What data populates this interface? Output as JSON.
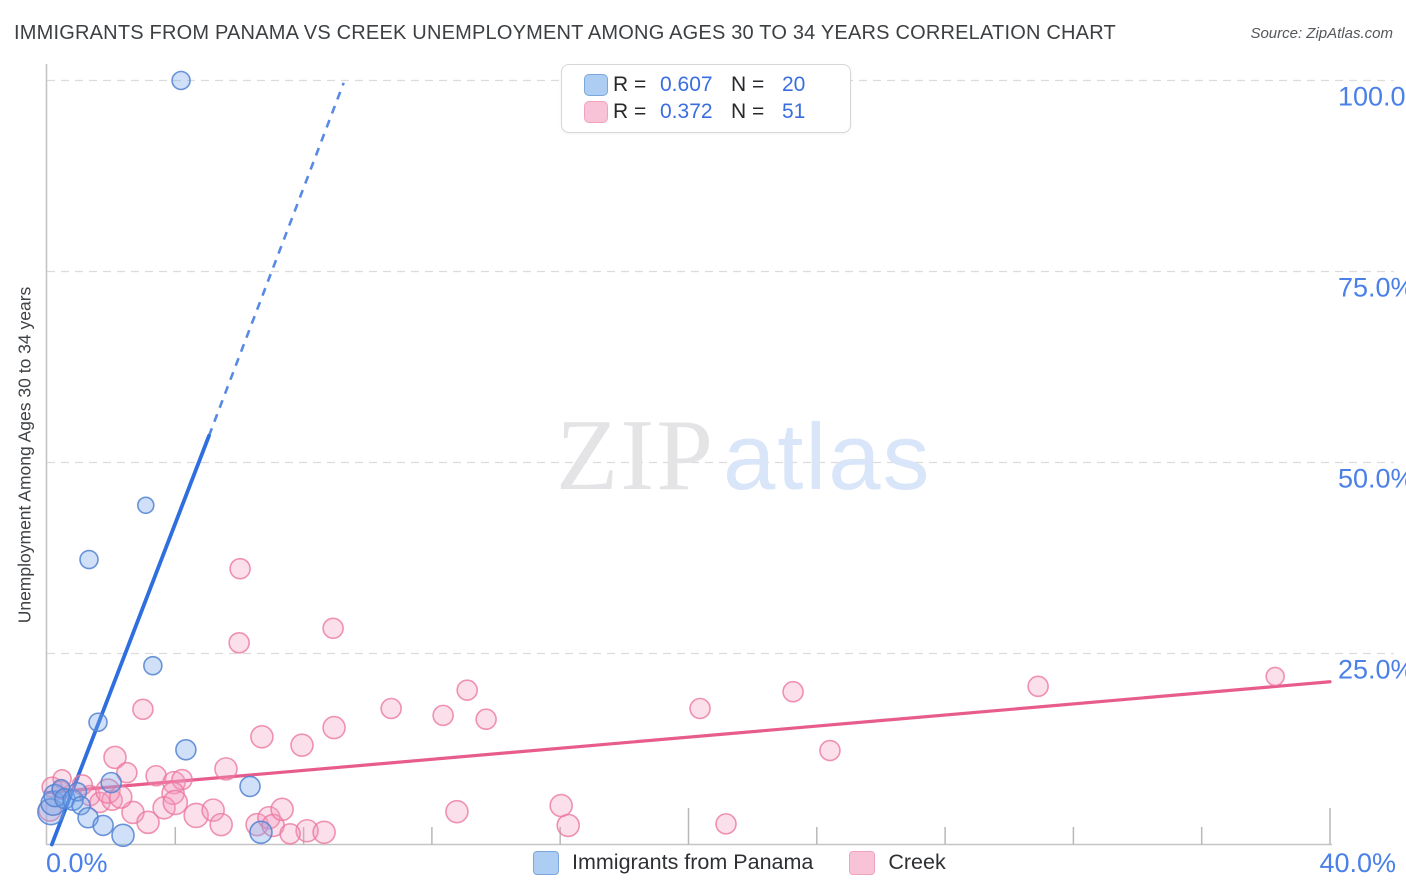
{
  "header": {
    "title": "IMMIGRANTS FROM PANAMA VS CREEK UNEMPLOYMENT AMONG AGES 30 TO 34 YEARS CORRELATION CHART",
    "source": "Source: ZipAtlas.com"
  },
  "legend_box": {
    "rows": [
      {
        "series": "panama",
        "r_label": "R =",
        "r_value": "0.607",
        "n_label": "N =",
        "n_value": "20"
      },
      {
        "series": "creek",
        "r_label": "R =",
        "r_value": "0.372",
        "n_label": "N =",
        "n_value": "51"
      }
    ]
  },
  "watermark": {
    "zip": "ZIP",
    "atlas": "atlas"
  },
  "axes": {
    "y_label": "Unemployment Among Ages 30 to 34 years",
    "x_min_label": "0.0%",
    "x_max_label": "40.0%",
    "y_tick_labels": [
      "100.0%",
      "75.0%",
      "50.0%",
      "25.0%"
    ]
  },
  "bottom_legend": {
    "panama_label": "Immigrants from Panama",
    "creek_label": "Creek"
  },
  "colors": {
    "panama_fill": "rgba(118,165,235,0.35)",
    "panama_stroke": "rgba(82,130,210,0.85)",
    "panama_swatch_fill": "#aecdf2",
    "panama_swatch_stroke": "#7ba7dd",
    "panama_line": "#2e6ede",
    "creek_fill": "rgba(244,156,190,0.32)",
    "creek_stroke": "rgba(236,120,160,0.8)",
    "creek_swatch_fill": "#f9c3d7",
    "creek_swatch_stroke": "#efa3bf",
    "creek_line": "#e75c8d",
    "axis_label_blue": "#4a80e8",
    "grid": "#dcdcdc",
    "axis": "#c4c4c4",
    "tick": "#b8b8b8",
    "watermark_zip": "#e4e4e7",
    "watermark_atlas": "#d9e5f8"
  },
  "chart_data": {
    "type": "scatter",
    "title": "Immigrants from Panama vs Creek Unemployment Among Ages 30 to 34 years",
    "xlabel": "Immigrants from Panama (%)",
    "ylabel": "Unemployment Among Ages 30 to 34 years (%)",
    "x_range": [
      0,
      40
    ],
    "y_range": [
      0,
      100
    ],
    "x_ticks_pct": [
      4,
      8,
      12,
      16,
      20,
      24,
      28,
      32,
      36,
      40
    ],
    "x_major_ticks_pct": [
      20,
      40
    ],
    "grid_y_pct": [
      25,
      50,
      75,
      100
    ],
    "grid_on": true,
    "legend_position": "bottom",
    "series": [
      {
        "name": "Immigrants from Panama",
        "R": 0.607,
        "N": 20,
        "points_xyr": [
          [
            4.18,
            100.0,
            9
          ],
          [
            3.08,
            44.4,
            8
          ],
          [
            1.31,
            37.3,
            9
          ],
          [
            3.3,
            23.4,
            9
          ],
          [
            1.59,
            16.0,
            9
          ],
          [
            4.33,
            12.4,
            10
          ],
          [
            6.33,
            7.6,
            10
          ],
          [
            2.0,
            8.1,
            10
          ],
          [
            0.12,
            4.3,
            13
          ],
          [
            0.19,
            5.4,
            12
          ],
          [
            0.25,
            6.4,
            11
          ],
          [
            0.44,
            7.3,
            9
          ],
          [
            0.56,
            6.0,
            10
          ],
          [
            0.81,
            5.8,
            10
          ],
          [
            0.95,
            6.9,
            9
          ],
          [
            1.06,
            5.1,
            9
          ],
          [
            1.28,
            3.5,
            10
          ],
          [
            1.75,
            2.5,
            10
          ],
          [
            2.37,
            1.2,
            11
          ],
          [
            6.67,
            1.6,
            11
          ]
        ]
      },
      {
        "name": "Creek",
        "R": 0.372,
        "N": 51,
        "points_xyr": [
          [
            6.02,
            36.1,
            10
          ],
          [
            5.99,
            26.4,
            10
          ],
          [
            8.92,
            28.3,
            10
          ],
          [
            2.99,
            17.7,
            10
          ],
          [
            6.7,
            14.1,
            11
          ],
          [
            7.95,
            13.0,
            11
          ],
          [
            8.95,
            15.3,
            11
          ],
          [
            2.12,
            11.4,
            11
          ],
          [
            10.73,
            17.8,
            10
          ],
          [
            12.35,
            16.9,
            10
          ],
          [
            13.1,
            20.2,
            10
          ],
          [
            13.69,
            16.4,
            10
          ],
          [
            12.78,
            4.3,
            11
          ],
          [
            16.03,
            5.1,
            11
          ],
          [
            16.25,
            2.5,
            11
          ],
          [
            8.11,
            1.8,
            11
          ],
          [
            8.64,
            1.6,
            11
          ],
          [
            20.36,
            17.8,
            10
          ],
          [
            23.26,
            20.0,
            10
          ],
          [
            24.41,
            12.3,
            10
          ],
          [
            30.9,
            20.7,
            10
          ],
          [
            21.17,
            2.7,
            10
          ],
          [
            38.29,
            22.0,
            9
          ],
          [
            2.49,
            9.4,
            10
          ],
          [
            3.4,
            9.0,
            10
          ],
          [
            3.96,
            8.1,
            11
          ],
          [
            4.21,
            8.5,
            10
          ],
          [
            3.93,
            6.7,
            11
          ],
          [
            2.68,
            4.2,
            11
          ],
          [
            3.15,
            2.9,
            11
          ],
          [
            3.65,
            4.8,
            11
          ],
          [
            4.65,
            3.8,
            12
          ],
          [
            5.18,
            4.5,
            11
          ],
          [
            5.43,
            2.6,
            11
          ],
          [
            5.58,
            9.9,
            11
          ],
          [
            6.55,
            2.6,
            11
          ],
          [
            6.92,
            3.5,
            11
          ],
          [
            7.05,
            2.5,
            11
          ],
          [
            7.33,
            4.6,
            11
          ],
          [
            7.58,
            1.4,
            10
          ],
          [
            0.16,
            7.5,
            10
          ],
          [
            0.44,
            7.1,
            9
          ],
          [
            1.34,
            6.4,
            10
          ],
          [
            1.65,
            5.5,
            10
          ],
          [
            2.03,
            5.8,
            10
          ],
          [
            0.47,
            8.6,
            9
          ],
          [
            0.09,
            4.5,
            11
          ],
          [
            1.9,
            7.0,
            12
          ],
          [
            2.3,
            6.2,
            11
          ],
          [
            4.0,
            5.5,
            12
          ],
          [
            1.1,
            7.8,
            10
          ]
        ]
      }
    ],
    "trend_lines": [
      {
        "series": "Immigrants from Panama",
        "solid": [
          [
            0.15,
            0.0
          ],
          [
            5.05,
            53.5
          ]
        ],
        "dashed": [
          [
            5.05,
            53.5
          ],
          [
            9.25,
            99.7
          ]
        ]
      },
      {
        "series": "Creek",
        "solid": [
          [
            0.0,
            6.8
          ],
          [
            40.0,
            21.3
          ]
        ]
      }
    ]
  }
}
